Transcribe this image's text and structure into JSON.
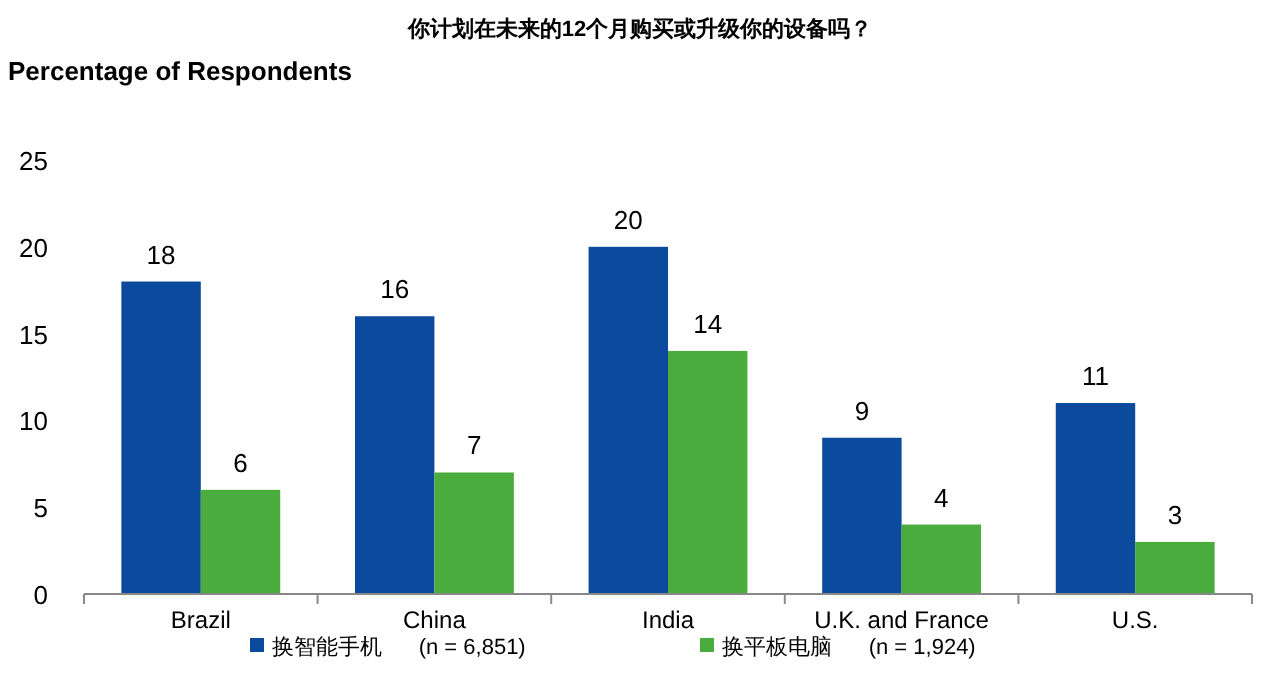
{
  "chart_data": {
    "type": "bar",
    "title": "你计划在未来的12个月购买或升级你的设备吗？",
    "ylabel": "Percentage of Respondents",
    "categories": [
      "Brazil",
      "China",
      "India",
      "U.K. and France",
      "U.S."
    ],
    "series": [
      {
        "name": "换智能手机      (n = 6,851)",
        "color": "#0b4a9c",
        "values": [
          18,
          16,
          20,
          9,
          11
        ]
      },
      {
        "name": "换平板电脑      (n = 1,924)",
        "color": "#4aac3c",
        "values": [
          6,
          7,
          14,
          4,
          3
        ]
      }
    ],
    "ylim": [
      0,
      25
    ],
    "yticks": [
      0,
      5,
      10,
      15,
      20,
      25
    ],
    "data_labels": true,
    "legend": "bottom"
  }
}
